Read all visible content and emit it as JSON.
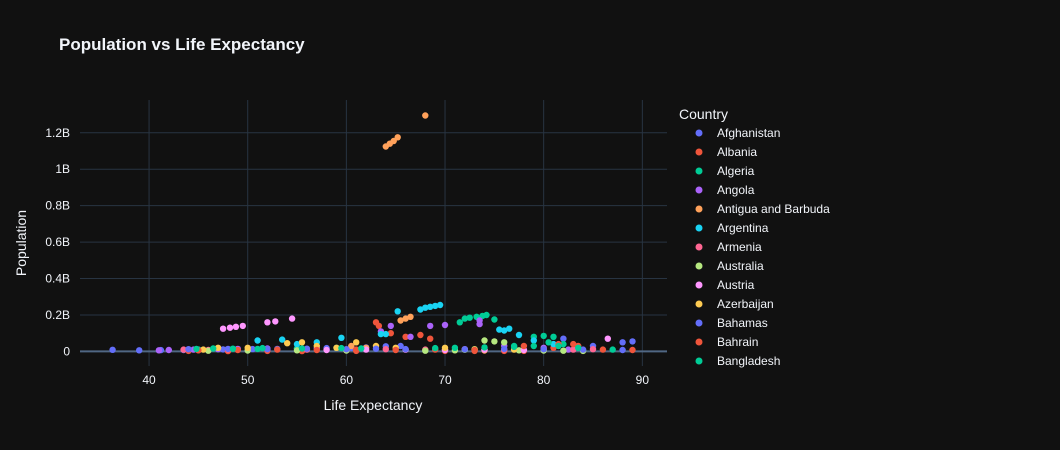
{
  "chart_data": {
    "type": "scatter",
    "title": "Population vs Life Expectancy",
    "xlabel": "Life Expectancy",
    "ylabel": "Population",
    "xlim": [
      33,
      92.5
    ],
    "ylim": [
      -0.08,
      1.38
    ],
    "y_unit": "billions",
    "x_ticks": [
      40,
      50,
      60,
      70,
      80,
      90
    ],
    "y_ticks": [
      {
        "value": 0,
        "label": "0"
      },
      {
        "value": 0.2,
        "label": "0.2B"
      },
      {
        "value": 0.4,
        "label": "0.4B"
      },
      {
        "value": 0.6,
        "label": "0.6B"
      },
      {
        "value": 0.8,
        "label": "0.8B"
      },
      {
        "value": 1.0,
        "label": "1B"
      },
      {
        "value": 1.2,
        "label": "1.2B"
      }
    ],
    "grid": true,
    "legend": {
      "title": "Country",
      "placement": "right"
    },
    "series": [
      {
        "name": "Afghanistan",
        "color": "#636efa",
        "points": [
          [
            36.3,
            0.009
          ],
          [
            39.0,
            0.006
          ],
          [
            41.2,
            0.007
          ],
          [
            43.5,
            0.008
          ],
          [
            45.0,
            0.01
          ],
          [
            47.5,
            0.011
          ],
          [
            49.0,
            0.012
          ],
          [
            50.5,
            0.013
          ],
          [
            53.0,
            0.014
          ],
          [
            55.0,
            0.015
          ],
          [
            58.0,
            0.018
          ],
          [
            60.5,
            0.02
          ],
          [
            62.0,
            0.022
          ],
          [
            64.0,
            0.028
          ],
          [
            65.5,
            0.03
          ],
          [
            72.0,
            0.01
          ],
          [
            78.0,
            0.008
          ],
          [
            85.0,
            0.03
          ],
          [
            88.0,
            0.05
          ],
          [
            89.0,
            0.055
          ],
          [
            82.0,
            0.07
          ]
        ]
      },
      {
        "name": "Albania",
        "color": "#ef553b",
        "points": [
          [
            44.0,
            0.003
          ],
          [
            48.0,
            0.002
          ],
          [
            52.0,
            0.003
          ],
          [
            55.5,
            0.002
          ],
          [
            61.0,
            0.003
          ],
          [
            63.0,
            0.16
          ],
          [
            63.3,
            0.14
          ],
          [
            64.5,
            0.1
          ],
          [
            66.0,
            0.08
          ],
          [
            67.5,
            0.09
          ],
          [
            68.5,
            0.07
          ],
          [
            70.0,
            0.003
          ],
          [
            73.0,
            0.003
          ],
          [
            76.0,
            0.003
          ],
          [
            78.0,
            0.003
          ],
          [
            81.0,
            0.02
          ],
          [
            83.5,
            0.03
          ],
          [
            86.0,
            0.01
          ],
          [
            89.0,
            0.008
          ]
        ]
      },
      {
        "name": "Algeria",
        "color": "#00cc96",
        "points": [
          [
            45.0,
            0.01
          ],
          [
            47.0,
            0.012
          ],
          [
            51.0,
            0.014
          ],
          [
            55.0,
            0.016
          ],
          [
            59.0,
            0.02
          ],
          [
            71.5,
            0.16
          ],
          [
            72.0,
            0.18
          ],
          [
            72.5,
            0.185
          ],
          [
            73.2,
            0.19
          ],
          [
            73.8,
            0.195
          ],
          [
            74.2,
            0.2
          ],
          [
            75.0,
            0.175
          ],
          [
            77.0,
            0.03
          ],
          [
            79.0,
            0.08
          ],
          [
            80.0,
            0.085
          ],
          [
            81.0,
            0.08
          ],
          [
            82.0,
            0.04
          ],
          [
            84.0,
            0.005
          ]
        ]
      },
      {
        "name": "Angola",
        "color": "#ab63fa",
        "points": [
          [
            41.0,
            0.006
          ],
          [
            42.0,
            0.008
          ],
          [
            44.5,
            0.01
          ],
          [
            47.0,
            0.012
          ],
          [
            49.0,
            0.014
          ],
          [
            52.0,
            0.016
          ],
          [
            57.0,
            0.018
          ],
          [
            63.5,
            0.11
          ],
          [
            64.5,
            0.14
          ],
          [
            66.5,
            0.08
          ],
          [
            68.5,
            0.14
          ],
          [
            70.0,
            0.145
          ],
          [
            73.5,
            0.15
          ],
          [
            73.5,
            0.17
          ],
          [
            76.0,
            0.03
          ],
          [
            80.0,
            0.02
          ],
          [
            82.5,
            0.01
          ]
        ]
      },
      {
        "name": "Antigua and Barbuda",
        "color": "#ffa15a",
        "points": [
          [
            64.0,
            1.125
          ],
          [
            64.4,
            1.14
          ],
          [
            64.8,
            1.155
          ],
          [
            65.2,
            1.175
          ],
          [
            68.0,
            1.295
          ],
          [
            65.5,
            0.17
          ],
          [
            66.0,
            0.18
          ],
          [
            66.5,
            0.19
          ],
          [
            60.5,
            0.03
          ],
          [
            62.0,
            0.02
          ],
          [
            70.0,
            0.01
          ],
          [
            74.0,
            0.005
          ]
        ]
      },
      {
        "name": "Argentina",
        "color": "#19d3f3",
        "points": [
          [
            51.0,
            0.06
          ],
          [
            53.5,
            0.065
          ],
          [
            55.0,
            0.04
          ],
          [
            57.0,
            0.05
          ],
          [
            59.5,
            0.075
          ],
          [
            63.5,
            0.095
          ],
          [
            64.0,
            0.095
          ],
          [
            65.2,
            0.22
          ],
          [
            67.5,
            0.23
          ],
          [
            68.0,
            0.24
          ],
          [
            68.5,
            0.245
          ],
          [
            69.0,
            0.25
          ],
          [
            69.5,
            0.255
          ],
          [
            75.5,
            0.12
          ],
          [
            76.0,
            0.115
          ],
          [
            76.5,
            0.125
          ],
          [
            77.5,
            0.09
          ],
          [
            79.0,
            0.06
          ],
          [
            81.0,
            0.04
          ]
        ]
      },
      {
        "name": "Armenia",
        "color": "#ff6692",
        "points": [
          [
            43.5,
            0.01
          ],
          [
            46.0,
            0.008
          ],
          [
            48.0,
            0.01
          ],
          [
            52.0,
            0.012
          ],
          [
            56.0,
            0.01
          ],
          [
            60.0,
            0.008
          ],
          [
            64.0,
            0.012
          ],
          [
            68.0,
            0.01
          ],
          [
            72.0,
            0.012
          ],
          [
            76.0,
            0.01
          ],
          [
            80.0,
            0.012
          ],
          [
            83.0,
            0.01
          ],
          [
            85.0,
            0.012
          ]
        ]
      },
      {
        "name": "Australia",
        "color": "#b6e880",
        "points": [
          [
            46.0,
            0.004
          ],
          [
            50.0,
            0.005
          ],
          [
            55.0,
            0.006
          ],
          [
            60.0,
            0.005
          ],
          [
            68.0,
            0.004
          ],
          [
            71.0,
            0.006
          ],
          [
            72.0,
            0.01
          ],
          [
            73.0,
            0.012
          ],
          [
            74.0,
            0.06
          ],
          [
            75.0,
            0.055
          ],
          [
            76.0,
            0.05
          ],
          [
            77.5,
            0.006
          ],
          [
            80.0,
            0.005
          ],
          [
            82.0,
            0.004
          ],
          [
            84.0,
            0.003
          ]
        ]
      },
      {
        "name": "Austria",
        "color": "#ff97ff",
        "points": [
          [
            47.5,
            0.125
          ],
          [
            48.2,
            0.13
          ],
          [
            48.8,
            0.135
          ],
          [
            49.5,
            0.14
          ],
          [
            52.0,
            0.16
          ],
          [
            52.8,
            0.165
          ],
          [
            54.5,
            0.18
          ],
          [
            58.0,
            0.008
          ],
          [
            62.0,
            0.01
          ],
          [
            66.0,
            0.01
          ],
          [
            70.0,
            0.008
          ],
          [
            74.0,
            0.01
          ],
          [
            78.0,
            0.008
          ],
          [
            86.5,
            0.07
          ]
        ]
      },
      {
        "name": "Azerbaijan",
        "color": "#fecb52",
        "points": [
          [
            45.5,
            0.01
          ],
          [
            47.0,
            0.02
          ],
          [
            50.0,
            0.02
          ],
          [
            54.0,
            0.045
          ],
          [
            55.5,
            0.05
          ],
          [
            57.0,
            0.03
          ],
          [
            59.0,
            0.02
          ],
          [
            61.0,
            0.05
          ],
          [
            63.0,
            0.03
          ],
          [
            65.0,
            0.02
          ],
          [
            70.0,
            0.02
          ],
          [
            73.0,
            0.01
          ],
          [
            77.0,
            0.01
          ]
        ]
      },
      {
        "name": "Bahamas",
        "color": "#636efa",
        "points": [
          [
            44.0,
            0.012
          ],
          [
            48.0,
            0.014
          ],
          [
            52.0,
            0.013
          ],
          [
            56.0,
            0.015
          ],
          [
            60.0,
            0.012
          ],
          [
            63.0,
            0.015
          ],
          [
            66.0,
            0.013
          ],
          [
            72.0,
            0.012
          ],
          [
            76.0,
            0.014
          ],
          [
            80.0,
            0.012
          ],
          [
            84.0,
            0.01
          ],
          [
            88.0,
            0.008
          ]
        ]
      },
      {
        "name": "Bahrain",
        "color": "#ef553b",
        "points": [
          [
            45.0,
            0.006
          ],
          [
            49.0,
            0.008
          ],
          [
            53.0,
            0.01
          ],
          [
            57.0,
            0.008
          ],
          [
            61.0,
            0.01
          ],
          [
            65.0,
            0.008
          ],
          [
            69.0,
            0.01
          ],
          [
            73.0,
            0.008
          ],
          [
            78.0,
            0.03
          ],
          [
            81.5,
            0.04
          ],
          [
            83.0,
            0.04
          ]
        ]
      },
      {
        "name": "Bangladesh",
        "color": "#00cc96",
        "points": [
          [
            44.8,
            0.014
          ],
          [
            46.5,
            0.016
          ],
          [
            48.5,
            0.015
          ],
          [
            51.5,
            0.018
          ],
          [
            55.5,
            0.016
          ],
          [
            59.5,
            0.018
          ],
          [
            61.5,
            0.016
          ],
          [
            69.0,
            0.018
          ],
          [
            71.0,
            0.02
          ],
          [
            74.0,
            0.022
          ],
          [
            77.0,
            0.025
          ],
          [
            79.0,
            0.03
          ],
          [
            80.5,
            0.05
          ],
          [
            81.5,
            0.03
          ],
          [
            83.5,
            0.02
          ],
          [
            87.0,
            0.01
          ]
        ]
      }
    ]
  }
}
